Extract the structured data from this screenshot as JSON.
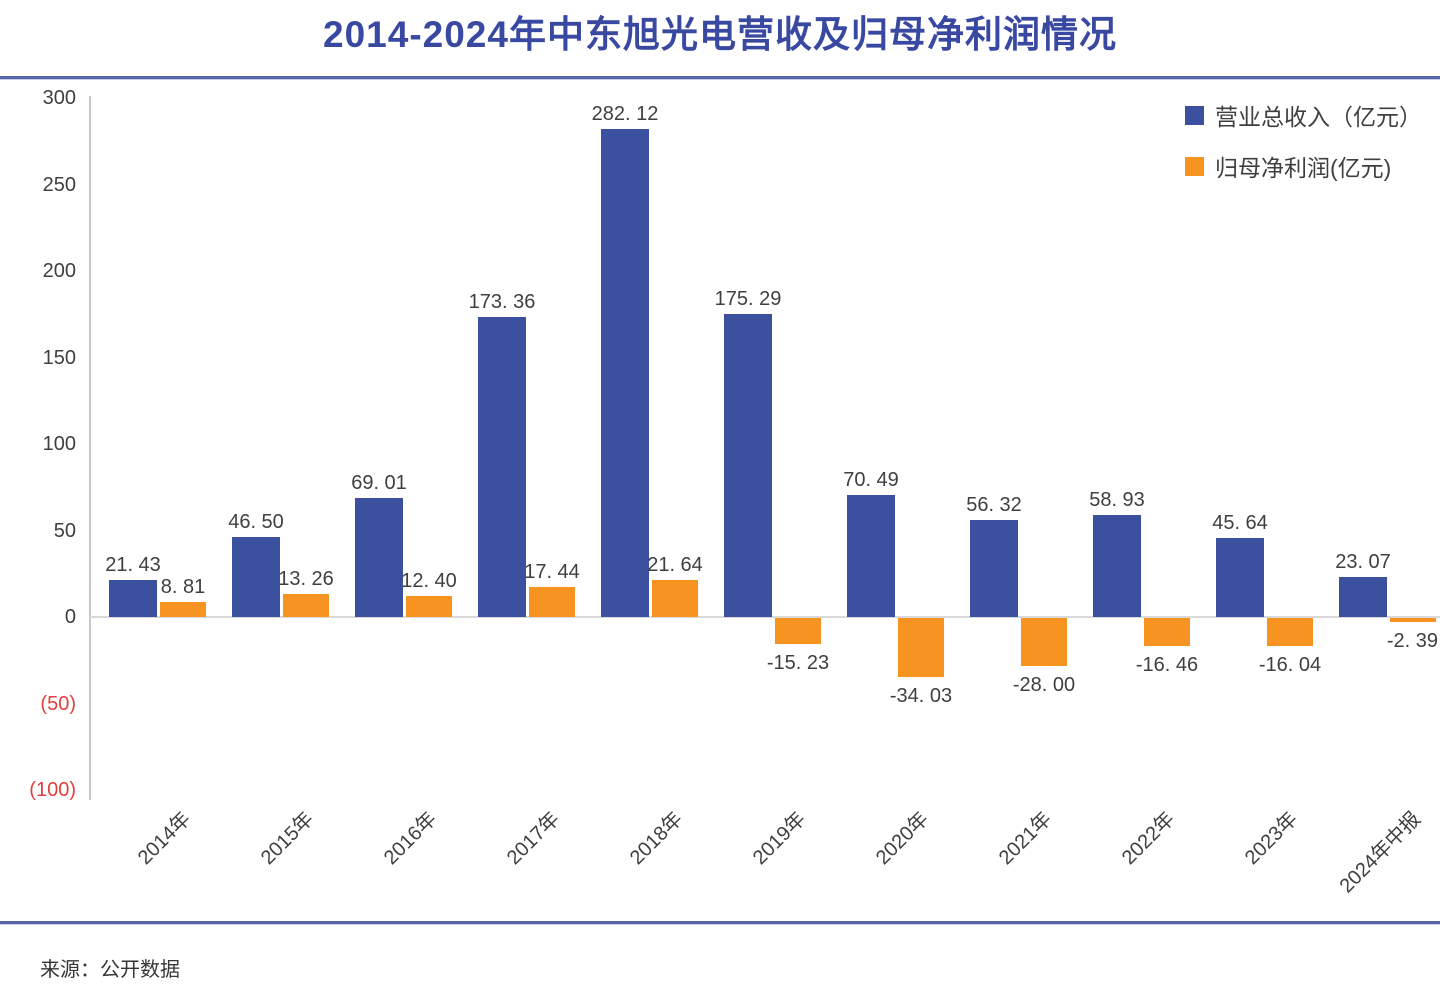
{
  "page": {
    "source": "来源：公开数据"
  },
  "chart_data": {
    "type": "bar",
    "title": "2014-2024年中东旭光电营收及归母净利润情况",
    "xlabel": "",
    "ylabel": "",
    "ylim": [
      -100,
      300
    ],
    "grid": false,
    "legend_position": "top-right",
    "categories": [
      "2014年",
      "2015年",
      "2016年",
      "2017年",
      "2018年",
      "2019年",
      "2020年",
      "2021年",
      "2022年",
      "2023年",
      "2024年中报"
    ],
    "series": [
      {
        "name": "营业总收入（亿元）",
        "color": "#3B519F",
        "values": [
          21.43,
          46.5,
          69.01,
          173.36,
          282.12,
          175.29,
          70.49,
          56.32,
          58.93,
          45.64,
          23.07
        ],
        "labels": [
          "21. 43",
          "46. 50",
          "69. 01",
          "173. 36",
          "282. 12",
          "175. 29",
          "70. 49",
          "56. 32",
          "58. 93",
          "45. 64",
          "23. 07"
        ]
      },
      {
        "name": "归母净利润(亿元)",
        "color": "#F79421",
        "values": [
          8.81,
          13.26,
          12.4,
          17.44,
          21.64,
          -15.23,
          -34.03,
          -28.0,
          -16.46,
          -16.04,
          -2.39
        ],
        "labels": [
          "8. 81",
          "13. 26",
          "12. 40",
          "17. 44",
          "21. 64",
          "-15. 23",
          "-34. 03",
          "-28. 00",
          "-16. 46",
          "-16. 04",
          "-2. 39"
        ]
      }
    ],
    "yticks": [
      {
        "v": 300,
        "label": "300"
      },
      {
        "v": 250,
        "label": "250"
      },
      {
        "v": 200,
        "label": "200"
      },
      {
        "v": 150,
        "label": "150"
      },
      {
        "v": 100,
        "label": "100"
      },
      {
        "v": 50,
        "label": "50"
      },
      {
        "v": 0,
        "label": "0"
      },
      {
        "v": -50,
        "label": "(50)"
      },
      {
        "v": -100,
        "label": "(100)"
      }
    ],
    "tick_color": "#3F3F3F",
    "negative_tick_color": "#E0403E",
    "label_color": "#3F3F3F"
  }
}
